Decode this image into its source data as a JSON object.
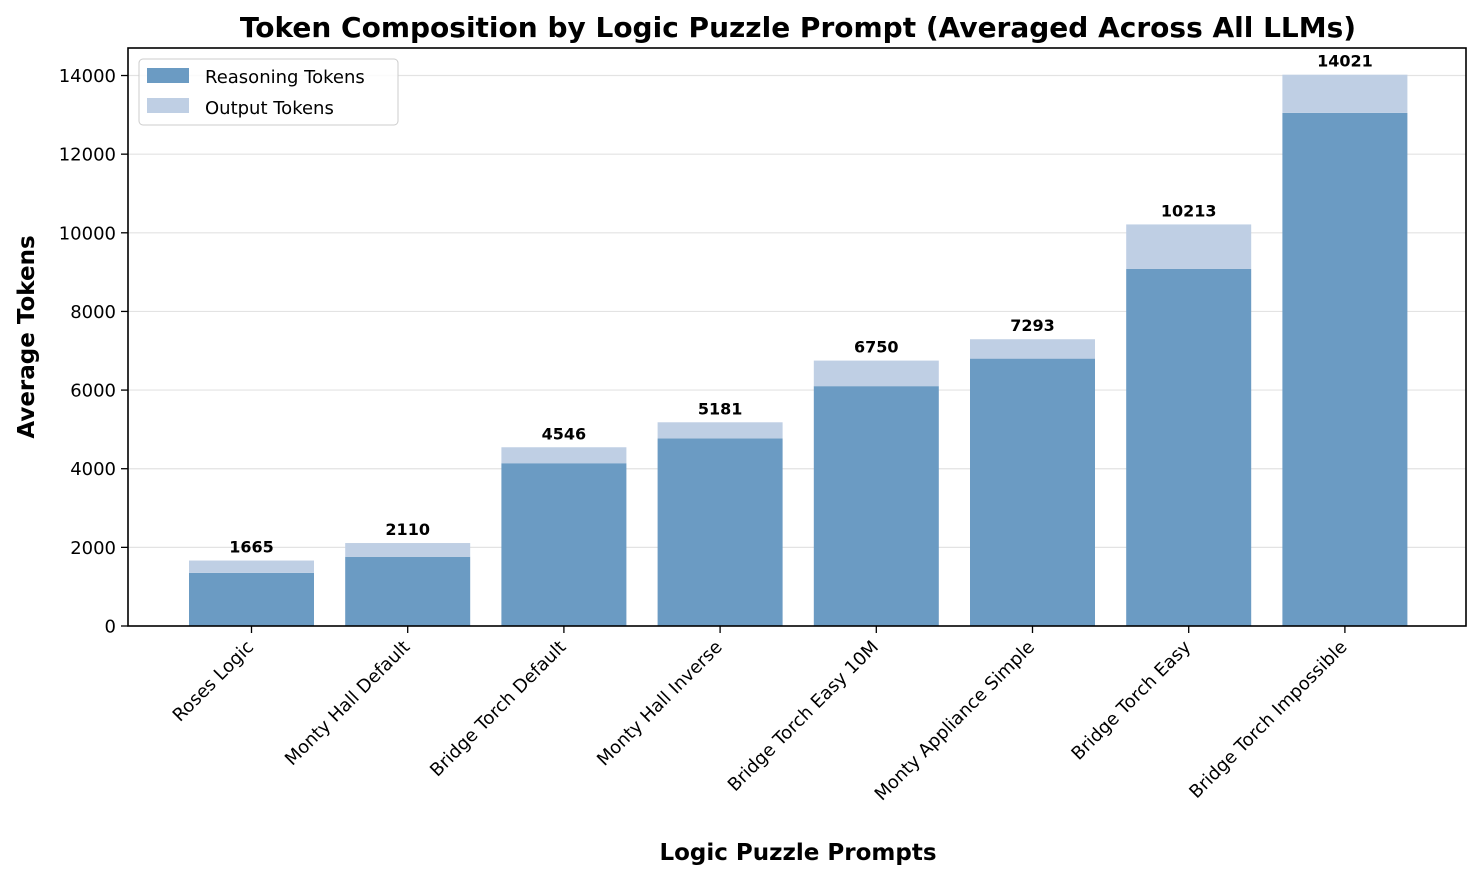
{
  "chart_data": {
    "type": "bar",
    "stacked": true,
    "title": "Token Composition by Logic Puzzle Prompt (Averaged Across All LLMs)",
    "xlabel": "Logic Puzzle Prompts",
    "ylabel": "Average Tokens",
    "ylim": [
      0,
      14700
    ],
    "yticks": [
      0,
      2000,
      4000,
      6000,
      8000,
      10000,
      12000,
      14000
    ],
    "grid": "y",
    "legend": {
      "position": "top-left",
      "entries": [
        "Reasoning Tokens",
        "Output Tokens"
      ]
    },
    "categories": [
      "Roses Logic",
      "Monty Hall Default",
      "Bridge Torch Default",
      "Monty Hall Inverse",
      "Bridge Torch Easy 10M",
      "Monty Appliance Simple",
      "Bridge Torch Easy",
      "Bridge Torch Impossible"
    ],
    "series": [
      {
        "name": "Reasoning Tokens",
        "color": "#6b9bc3",
        "values": [
          1350,
          1760,
          4140,
          4770,
          6100,
          6800,
          9080,
          13050
        ]
      },
      {
        "name": "Output Tokens",
        "color": "#bfcfe4",
        "values": [
          315,
          350,
          406,
          411,
          650,
          493,
          1133,
          971
        ]
      }
    ],
    "totals": [
      "1665",
      "2110",
      "4546",
      "5181",
      "6750",
      "7293",
      "10213",
      "14021"
    ]
  }
}
